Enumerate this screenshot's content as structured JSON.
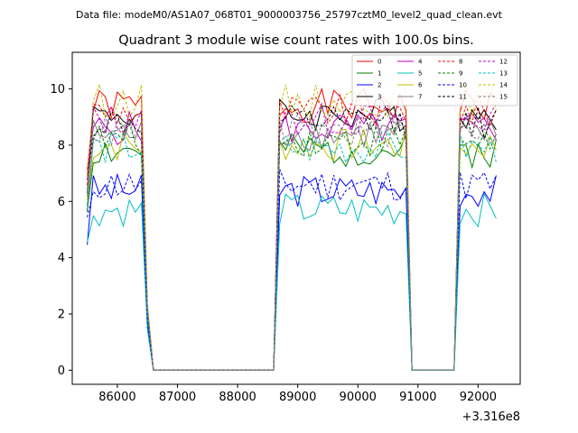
{
  "header": {
    "file_line": "Data file: modeM0/AS1A07_068T01_9000003756_25797cztM0_level2_quad_clean.evt"
  },
  "chart_data": {
    "type": "line",
    "title": "Quadrant 3 module wise count rates with 100.0s bins.",
    "xlabel": "",
    "ylabel": "",
    "x_offset_label": "+3.316e8",
    "xlim": [
      85250,
      92700
    ],
    "ylim": [
      -0.5,
      11.3
    ],
    "xticks": [
      86000,
      87000,
      88000,
      89000,
      90000,
      91000,
      92000
    ],
    "xtick_labels": [
      "86000",
      "87000",
      "88000",
      "89000",
      "90000",
      "91000",
      "92000"
    ],
    "yticks": [
      0,
      2,
      4,
      6,
      8,
      10
    ],
    "ytick_labels": [
      "0",
      "2",
      "4",
      "6",
      "8",
      "10"
    ],
    "grid": false,
    "legend_position": "top-right",
    "segments": [
      {
        "start": 85500,
        "end": 86500
      },
      {
        "start": 88650,
        "end": 90850
      },
      {
        "start": 91650,
        "end": 92350
      }
    ],
    "series": [
      {
        "name": "0",
        "color": "#ff0000",
        "dashed": false,
        "level": 9.4
      },
      {
        "name": "1",
        "color": "#008000",
        "dashed": false,
        "level": 7.8
      },
      {
        "name": "2",
        "color": "#0000ff",
        "dashed": false,
        "level": 6.4
      },
      {
        "name": "3",
        "color": "#000000",
        "dashed": false,
        "level": 9.1
      },
      {
        "name": "4",
        "color": "#bf00bf",
        "dashed": false,
        "level": 8.6
      },
      {
        "name": "5",
        "color": "#00bfbf",
        "dashed": false,
        "level": 5.7
      },
      {
        "name": "6",
        "color": "#bfbf00",
        "dashed": false,
        "level": 8.0
      },
      {
        "name": "7",
        "color": "#808080",
        "dashed": false,
        "level": 8.4
      },
      {
        "name": "8",
        "color": "#ff0000",
        "dashed": true,
        "level": 9.2
      },
      {
        "name": "9",
        "color": "#008000",
        "dashed": true,
        "level": 8.2
      },
      {
        "name": "10",
        "color": "#0000ff",
        "dashed": true,
        "level": 6.6
      },
      {
        "name": "11",
        "color": "#000000",
        "dashed": true,
        "level": 8.8
      },
      {
        "name": "12",
        "color": "#bf00bf",
        "dashed": true,
        "level": 8.9
      },
      {
        "name": "13",
        "color": "#00bfbf",
        "dashed": true,
        "level": 7.9
      },
      {
        "name": "14",
        "color": "#bfbf00",
        "dashed": true,
        "level": 9.6
      },
      {
        "name": "15",
        "color": "#808080",
        "dashed": true,
        "level": 8.5
      }
    ]
  }
}
